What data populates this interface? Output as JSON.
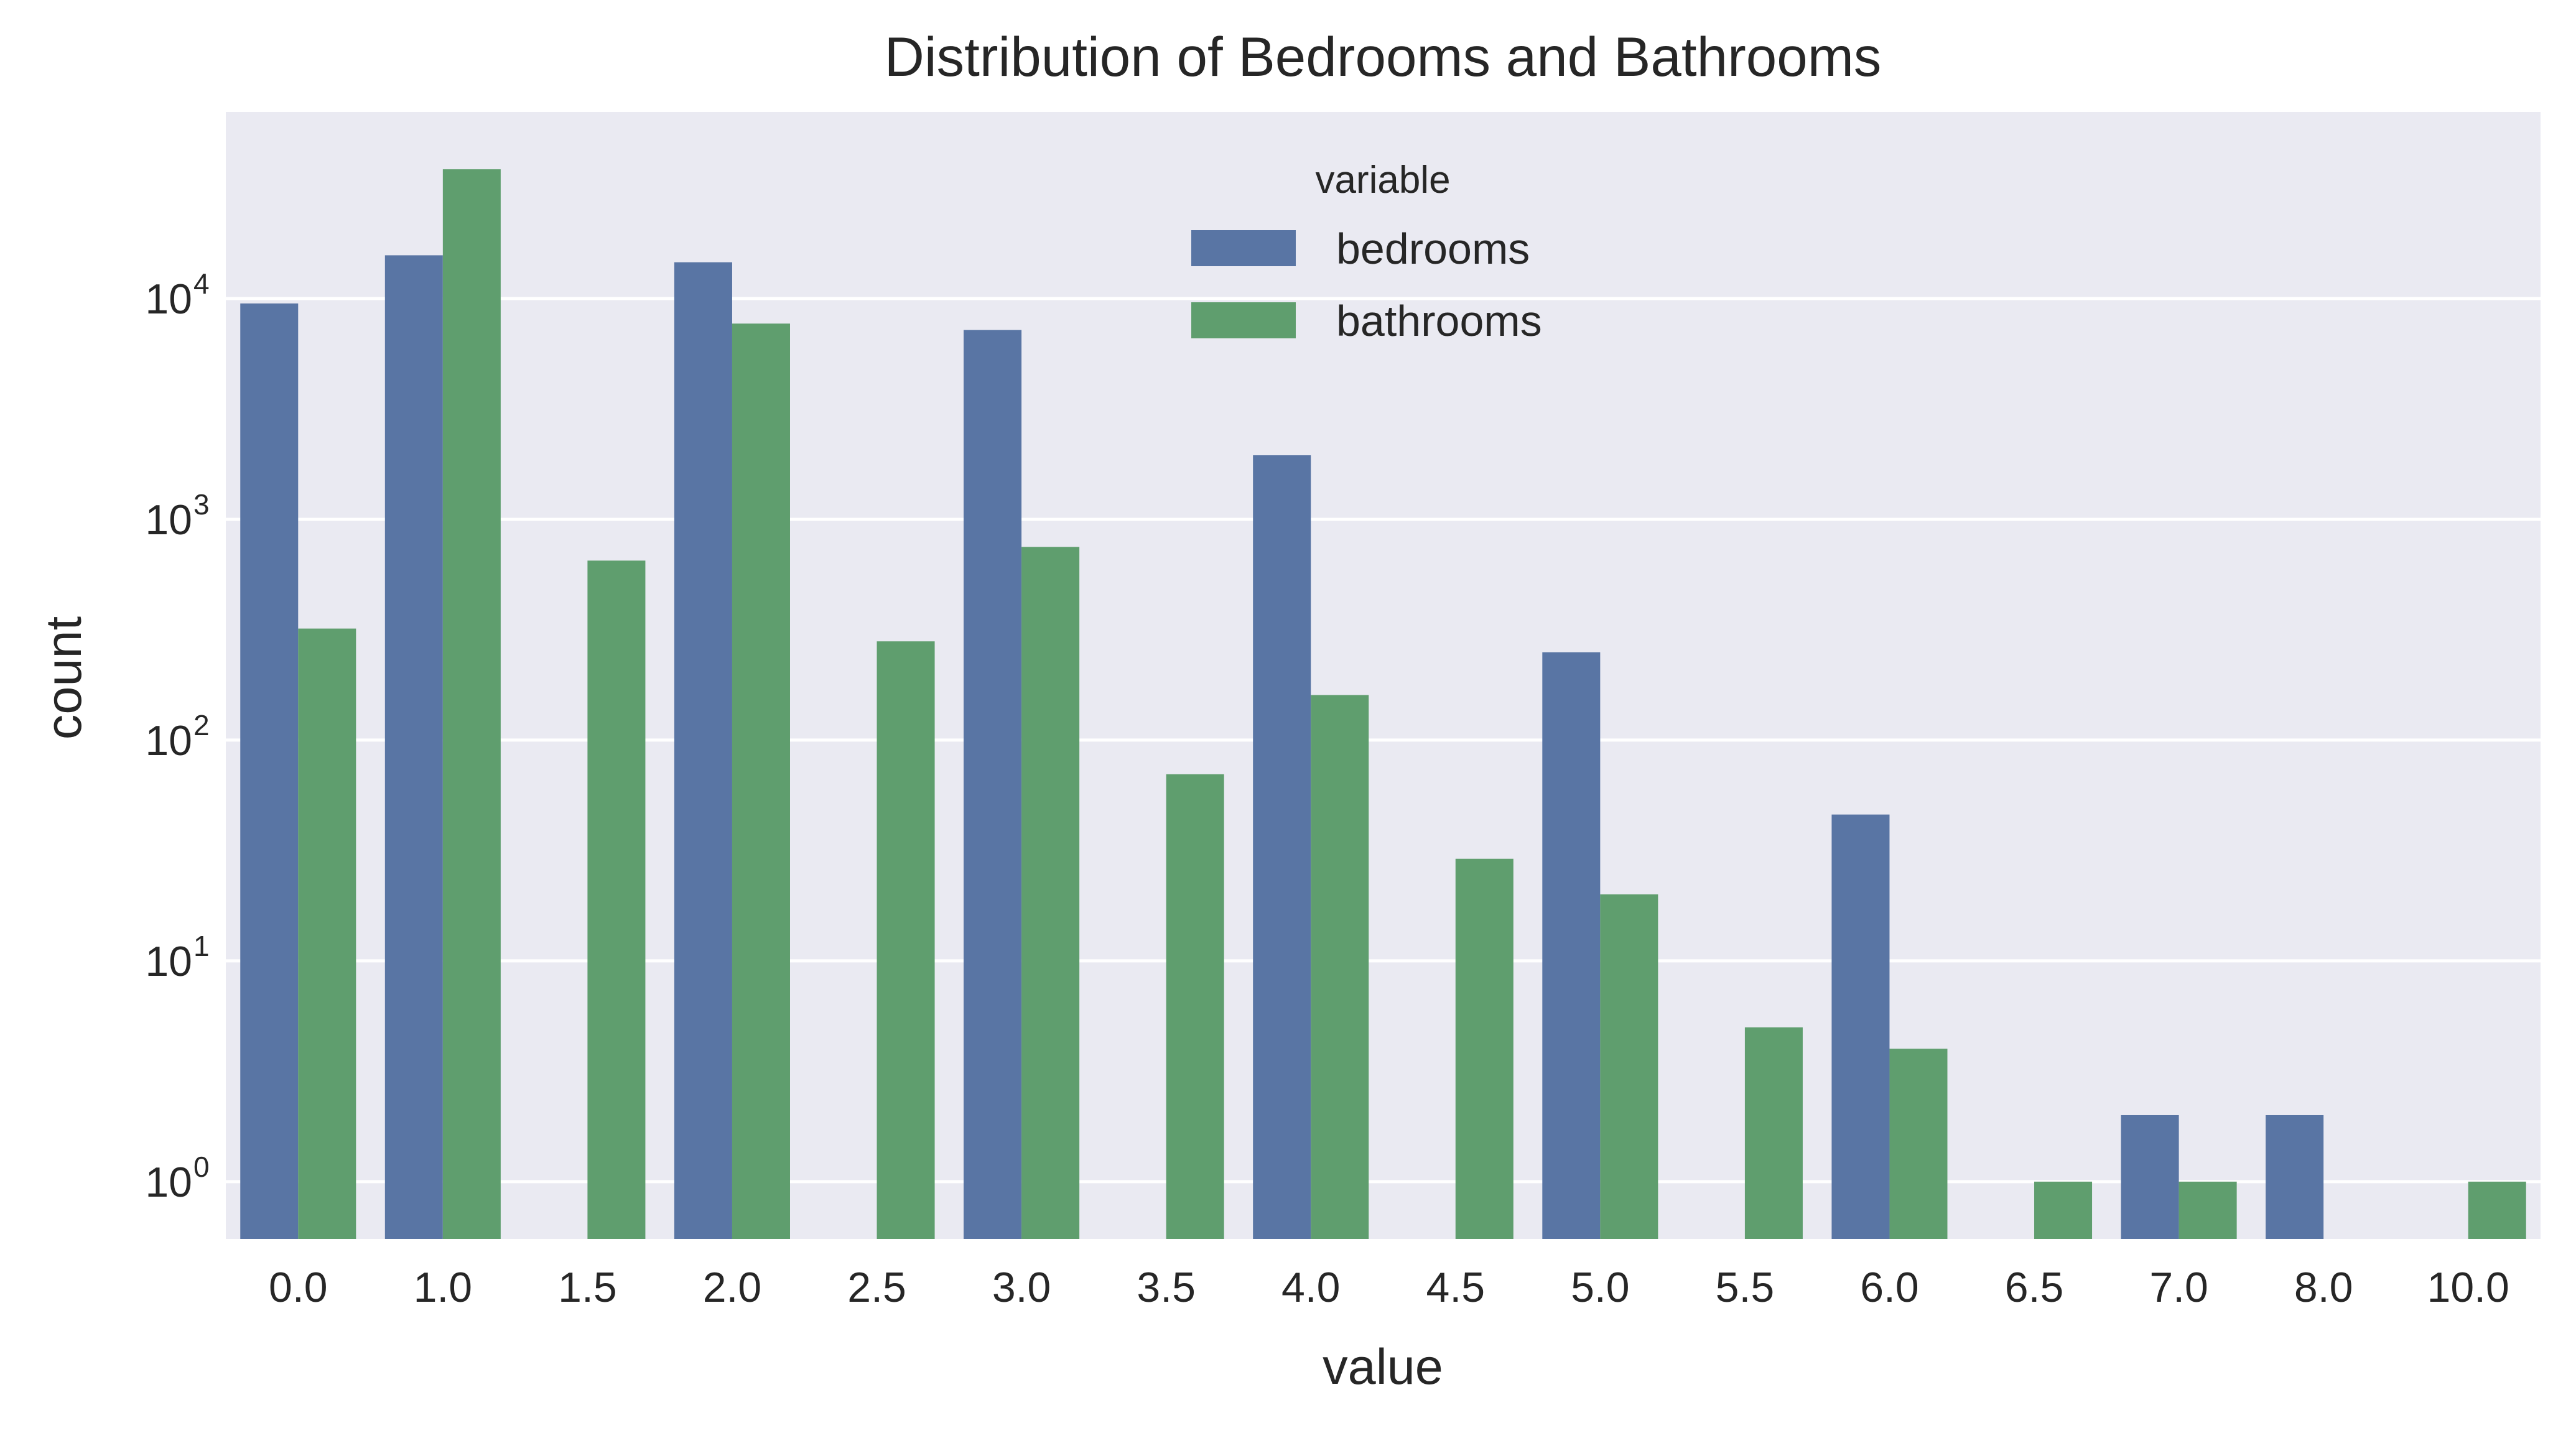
{
  "chart_data": {
    "type": "bar",
    "title": "Distribution of Bedrooms and Bathrooms",
    "xlabel": "value",
    "ylabel": "count",
    "y_scale": "log",
    "ylim": [
      0.55,
      70000
    ],
    "y_ticks": [
      {
        "value": 1,
        "base": "10",
        "exp": "0"
      },
      {
        "value": 10,
        "base": "10",
        "exp": "1"
      },
      {
        "value": 100,
        "base": "10",
        "exp": "2"
      },
      {
        "value": 1000,
        "base": "10",
        "exp": "3"
      },
      {
        "value": 10000,
        "base": "10",
        "exp": "4"
      }
    ],
    "categories": [
      "0.0",
      "1.0",
      "1.5",
      "2.0",
      "2.5",
      "3.0",
      "3.5",
      "4.0",
      "4.5",
      "5.0",
      "5.5",
      "6.0",
      "6.5",
      "7.0",
      "8.0",
      "10.0"
    ],
    "series": [
      {
        "name": "bedrooms",
        "color": "#5975a4",
        "values": [
          9500,
          15700,
          null,
          14600,
          null,
          7200,
          null,
          1950,
          null,
          250,
          null,
          46,
          null,
          2,
          2,
          null
        ]
      },
      {
        "name": "bathrooms",
        "color": "#5f9e6e",
        "values": [
          320,
          38500,
          650,
          7700,
          280,
          750,
          70,
          160,
          29,
          20,
          5,
          4,
          1,
          1,
          null,
          1
        ]
      }
    ],
    "legend": {
      "title": "variable",
      "position": "top-center"
    },
    "grid": true,
    "background_color": "#eaeaf2"
  }
}
